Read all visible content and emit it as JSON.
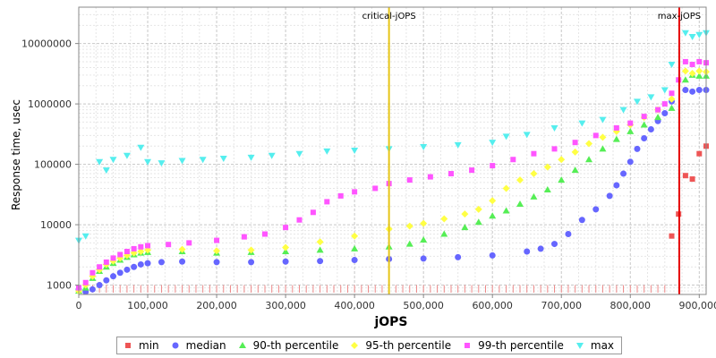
{
  "chart_data": {
    "type": "scatter",
    "xlabel": "jOPS",
    "ylabel": "Response time, usec",
    "xlim": [
      0,
      910000
    ],
    "ylim": [
      700,
      40000000
    ],
    "y_scale": "log",
    "grid": true,
    "legend_position": "bottom",
    "x_ticks": [
      0,
      100000,
      200000,
      300000,
      400000,
      500000,
      600000,
      700000,
      800000,
      900000
    ],
    "x_tick_labels": [
      "0",
      "100,000",
      "200,000",
      "300,000",
      "400,000",
      "500,000",
      "600,000",
      "700,000",
      "800,000",
      "900,000"
    ],
    "y_ticks": [
      1000,
      10000,
      100000,
      1000000,
      10000000
    ],
    "y_tick_labels": [
      "1000",
      "10000",
      "100000",
      "1000000",
      "10000000"
    ],
    "markers": [
      {
        "label": "critical-jOPS",
        "x": 450000,
        "color": "#e6c619"
      },
      {
        "label": "max-jOPS",
        "x": 871000,
        "color": "#e60000"
      }
    ],
    "series": [
      {
        "name": "min",
        "color": "#ee5555",
        "shape": "square",
        "points": [
          [
            860000,
            6500
          ],
          [
            870000,
            15000
          ],
          [
            880000,
            65000
          ],
          [
            890000,
            57000
          ],
          [
            900000,
            150000
          ],
          [
            910000,
            200000
          ]
        ]
      },
      {
        "name": "median",
        "color": "#6666ff",
        "shape": "circle",
        "points": [
          [
            0,
            850
          ],
          [
            10000,
            750
          ],
          [
            20000,
            850
          ],
          [
            30000,
            1000
          ],
          [
            40000,
            1200
          ],
          [
            50000,
            1400
          ],
          [
            60000,
            1600
          ],
          [
            70000,
            1800
          ],
          [
            80000,
            2000
          ],
          [
            90000,
            2200
          ],
          [
            100000,
            2300
          ],
          [
            120000,
            2400
          ],
          [
            150000,
            2450
          ],
          [
            200000,
            2400
          ],
          [
            250000,
            2400
          ],
          [
            300000,
            2450
          ],
          [
            350000,
            2500
          ],
          [
            400000,
            2600
          ],
          [
            450000,
            2700
          ],
          [
            500000,
            2750
          ],
          [
            550000,
            2900
          ],
          [
            600000,
            3100
          ],
          [
            650000,
            3600
          ],
          [
            670000,
            4000
          ],
          [
            690000,
            4800
          ],
          [
            710000,
            7000
          ],
          [
            730000,
            12000
          ],
          [
            750000,
            18000
          ],
          [
            770000,
            30000
          ],
          [
            780000,
            45000
          ],
          [
            790000,
            70000
          ],
          [
            800000,
            110000
          ],
          [
            810000,
            180000
          ],
          [
            820000,
            270000
          ],
          [
            830000,
            380000
          ],
          [
            840000,
            520000
          ],
          [
            850000,
            700000
          ],
          [
            860000,
            1100000
          ],
          [
            880000,
            1700000
          ],
          [
            890000,
            1600000
          ],
          [
            900000,
            1700000
          ],
          [
            910000,
            1700000
          ]
        ]
      },
      {
        "name": "90-th percentile",
        "color": "#55ee55",
        "shape": "triangle-up",
        "points": [
          [
            0,
            800
          ],
          [
            10000,
            900
          ],
          [
            20000,
            1300
          ],
          [
            30000,
            1700
          ],
          [
            40000,
            2000
          ],
          [
            50000,
            2300
          ],
          [
            60000,
            2600
          ],
          [
            70000,
            2900
          ],
          [
            80000,
            3200
          ],
          [
            90000,
            3400
          ],
          [
            100000,
            3500
          ],
          [
            150000,
            3600
          ],
          [
            200000,
            3400
          ],
          [
            250000,
            3500
          ],
          [
            300000,
            3600
          ],
          [
            350000,
            3800
          ],
          [
            400000,
            4000
          ],
          [
            450000,
            4300
          ],
          [
            480000,
            4800
          ],
          [
            500000,
            5600
          ],
          [
            530000,
            7000
          ],
          [
            560000,
            9000
          ],
          [
            580000,
            11000
          ],
          [
            600000,
            14000
          ],
          [
            620000,
            17000
          ],
          [
            640000,
            22000
          ],
          [
            660000,
            29000
          ],
          [
            680000,
            38000
          ],
          [
            700000,
            55000
          ],
          [
            720000,
            80000
          ],
          [
            740000,
            120000
          ],
          [
            760000,
            180000
          ],
          [
            780000,
            260000
          ],
          [
            800000,
            350000
          ],
          [
            820000,
            450000
          ],
          [
            840000,
            600000
          ],
          [
            860000,
            850000
          ],
          [
            880000,
            2500000
          ],
          [
            890000,
            3000000
          ],
          [
            900000,
            2900000
          ],
          [
            910000,
            2900000
          ]
        ]
      },
      {
        "name": "95-th percentile",
        "color": "#ffff44",
        "shape": "diamond",
        "points": [
          [
            0,
            800
          ],
          [
            10000,
            1000
          ],
          [
            20000,
            1400
          ],
          [
            30000,
            1800
          ],
          [
            40000,
            2200
          ],
          [
            50000,
            2500
          ],
          [
            60000,
            2800
          ],
          [
            70000,
            3100
          ],
          [
            80000,
            3400
          ],
          [
            90000,
            3600
          ],
          [
            100000,
            3800
          ],
          [
            150000,
            3900
          ],
          [
            200000,
            3700
          ],
          [
            250000,
            3800
          ],
          [
            300000,
            4200
          ],
          [
            350000,
            5200
          ],
          [
            400000,
            6500
          ],
          [
            450000,
            8500
          ],
          [
            480000,
            9500
          ],
          [
            500000,
            10500
          ],
          [
            530000,
            12500
          ],
          [
            560000,
            15000
          ],
          [
            580000,
            18000
          ],
          [
            600000,
            25000
          ],
          [
            620000,
            40000
          ],
          [
            640000,
            55000
          ],
          [
            660000,
            70000
          ],
          [
            680000,
            90000
          ],
          [
            700000,
            120000
          ],
          [
            720000,
            160000
          ],
          [
            740000,
            220000
          ],
          [
            760000,
            280000
          ],
          [
            780000,
            350000
          ],
          [
            800000,
            450000
          ],
          [
            820000,
            600000
          ],
          [
            840000,
            800000
          ],
          [
            860000,
            1200000
          ],
          [
            880000,
            3500000
          ],
          [
            890000,
            3200000
          ],
          [
            900000,
            3500000
          ],
          [
            910000,
            3400000
          ]
        ]
      },
      {
        "name": "99-th percentile",
        "color": "#ff55ff",
        "shape": "square",
        "points": [
          [
            0,
            900
          ],
          [
            10000,
            1100
          ],
          [
            20000,
            1600
          ],
          [
            30000,
            2000
          ],
          [
            40000,
            2400
          ],
          [
            50000,
            2800
          ],
          [
            60000,
            3200
          ],
          [
            70000,
            3600
          ],
          [
            80000,
            4000
          ],
          [
            90000,
            4300
          ],
          [
            100000,
            4500
          ],
          [
            130000,
            4700
          ],
          [
            160000,
            5000
          ],
          [
            200000,
            5500
          ],
          [
            240000,
            6300
          ],
          [
            270000,
            7000
          ],
          [
            300000,
            9000
          ],
          [
            320000,
            12000
          ],
          [
            340000,
            16000
          ],
          [
            360000,
            24000
          ],
          [
            380000,
            30000
          ],
          [
            400000,
            35000
          ],
          [
            430000,
            40000
          ],
          [
            450000,
            48000
          ],
          [
            480000,
            55000
          ],
          [
            510000,
            62000
          ],
          [
            540000,
            70000
          ],
          [
            570000,
            80000
          ],
          [
            600000,
            95000
          ],
          [
            630000,
            120000
          ],
          [
            660000,
            150000
          ],
          [
            690000,
            180000
          ],
          [
            720000,
            230000
          ],
          [
            750000,
            300000
          ],
          [
            780000,
            400000
          ],
          [
            800000,
            480000
          ],
          [
            820000,
            620000
          ],
          [
            840000,
            800000
          ],
          [
            850000,
            1000000
          ],
          [
            860000,
            1500000
          ],
          [
            870000,
            2500000
          ],
          [
            880000,
            5000000
          ],
          [
            890000,
            4500000
          ],
          [
            900000,
            5000000
          ],
          [
            910000,
            4800000
          ]
        ]
      },
      {
        "name": "max",
        "color": "#55eeee",
        "shape": "triangle-down",
        "points": [
          [
            0,
            5500
          ],
          [
            10000,
            6500
          ],
          [
            30000,
            110000
          ],
          [
            40000,
            80000
          ],
          [
            50000,
            120000
          ],
          [
            70000,
            140000
          ],
          [
            90000,
            190000
          ],
          [
            100000,
            110000
          ],
          [
            120000,
            105000
          ],
          [
            150000,
            115000
          ],
          [
            180000,
            120000
          ],
          [
            210000,
            125000
          ],
          [
            250000,
            130000
          ],
          [
            280000,
            140000
          ],
          [
            320000,
            150000
          ],
          [
            360000,
            165000
          ],
          [
            400000,
            170000
          ],
          [
            450000,
            180000
          ],
          [
            500000,
            195000
          ],
          [
            550000,
            210000
          ],
          [
            600000,
            230000
          ],
          [
            620000,
            290000
          ],
          [
            650000,
            310000
          ],
          [
            690000,
            400000
          ],
          [
            730000,
            480000
          ],
          [
            760000,
            550000
          ],
          [
            790000,
            800000
          ],
          [
            810000,
            1100000
          ],
          [
            830000,
            1300000
          ],
          [
            850000,
            1700000
          ],
          [
            860000,
            4500000
          ],
          [
            880000,
            15000000
          ],
          [
            890000,
            13000000
          ],
          [
            900000,
            14000000
          ],
          [
            910000,
            15000000
          ]
        ]
      }
    ]
  }
}
